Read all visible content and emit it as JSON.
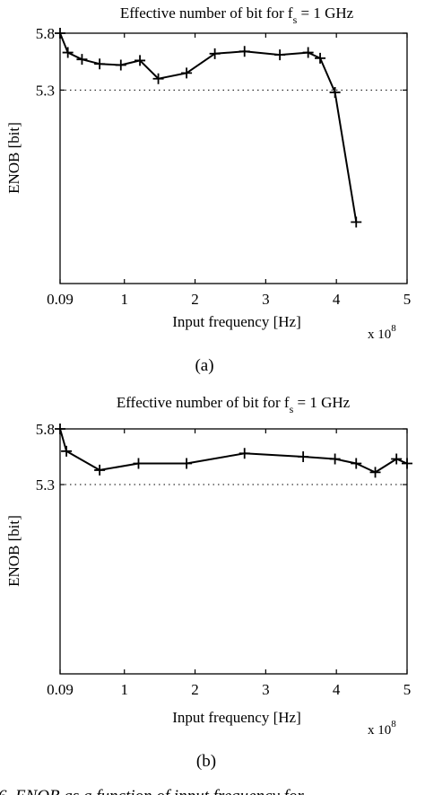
{
  "chart_data": [
    {
      "id": "a",
      "type": "line",
      "title": "Effective number of bit for f",
      "title_subscript": "s",
      "title_suffix": " = 1 GHz",
      "xlabel": "Input frequency [Hz]",
      "ylabel": "ENOB [bit]",
      "x_multiplier_text": "x 10",
      "x_multiplier_exponent": "8",
      "caption": "(a)",
      "xlim": [
        0.09,
        5
      ],
      "ylim": [
        3.6,
        5.8
      ],
      "x_ticks": [
        0.09,
        1,
        2,
        3,
        4,
        5
      ],
      "x_tick_labels": [
        "0.09",
        "1",
        "2",
        "3",
        "4",
        "5"
      ],
      "y_ticks": [
        5.3,
        5.8
      ],
      "y_tick_labels": [
        "5.3",
        "5.8"
      ],
      "grid": "dotted horizontal lines at y ticks",
      "series": [
        {
          "marker": "+",
          "color": "#000000",
          "x": [
            0.09,
            0.2,
            0.4,
            0.65,
            0.95,
            1.22,
            1.48,
            1.88,
            2.28,
            2.7,
            3.2,
            3.6,
            3.77,
            3.98,
            4.28
          ],
          "y": [
            5.8,
            5.63,
            5.57,
            5.53,
            5.52,
            5.56,
            5.4,
            5.45,
            5.62,
            5.64,
            5.61,
            5.63,
            5.58,
            5.28,
            4.14
          ]
        }
      ]
    },
    {
      "id": "b",
      "type": "line",
      "title": "Effective number of bit for f",
      "title_subscript": "s",
      "title_suffix": " = 1 GHz",
      "xlabel": "Input frequency [Hz]",
      "ylabel": "ENOB [bit]",
      "x_multiplier_text": "x 10",
      "x_multiplier_exponent": "8",
      "caption": "(b)",
      "xlim": [
        0.09,
        5
      ],
      "ylim": [
        3.6,
        5.8
      ],
      "x_ticks": [
        0.09,
        1,
        2,
        3,
        4,
        5
      ],
      "x_tick_labels": [
        "0.09",
        "1",
        "2",
        "3",
        "4",
        "5"
      ],
      "y_ticks": [
        5.3,
        5.8
      ],
      "y_tick_labels": [
        "5.3",
        "5.8"
      ],
      "grid": "dotted horizontal lines at y ticks",
      "series": [
        {
          "marker": "+",
          "color": "#000000",
          "x": [
            0.09,
            0.18,
            0.65,
            1.2,
            1.88,
            2.7,
            3.53,
            3.98,
            4.28,
            4.55,
            4.85,
            5.0
          ],
          "y": [
            5.8,
            5.6,
            5.43,
            5.49,
            5.49,
            5.58,
            5.55,
            5.53,
            5.49,
            5.41,
            5.53,
            5.49
          ]
        }
      ]
    }
  ],
  "figure_caption_partial": "6.  ENOB as a function of input frequency for"
}
